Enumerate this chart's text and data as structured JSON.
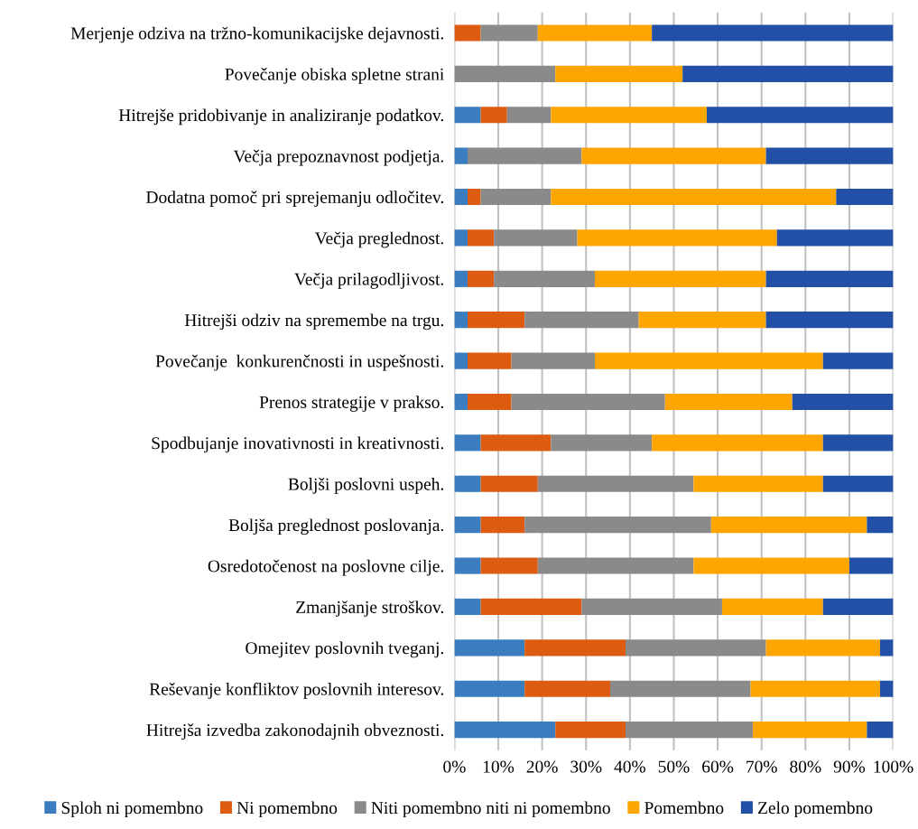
{
  "chart_data": {
    "type": "bar",
    "orientation": "horizontal",
    "stacked": true,
    "categories": [
      "Merjenje odziva na tržno-komunikacijske dejavnosti.",
      "Povečanje obiska spletne strani",
      "Hitrejše pridobivanje in analiziranje podatkov.",
      "Večja prepoznavnost podjetja.",
      "Dodatna pomoč pri sprejemanju odločitev.",
      "Večja preglednost.",
      "Večja prilagodljivost.",
      "Hitrejši odziv na spremembe na trgu.",
      "Povečanje  konkurenčnosti in uspešnosti.",
      "Prenos strategije v prakso.",
      "Spodbujanje inovativnosti in kreativnosti.",
      "Boljši poslovni uspeh.",
      "Boljša preglednost poslovanja.",
      "Osredotočenost na poslovne cilje.",
      "Zmanjšanje stroškov.",
      "Omejitev poslovnih tveganj.",
      "Reševanje konfliktov poslovnih interesov.",
      "Hitrejša izvedba zakonodajnih obveznosti."
    ],
    "series": [
      {
        "name": "Sploh ni pomembno",
        "color": "#3b7dbf",
        "values": [
          0,
          0,
          6,
          3,
          3,
          3,
          3,
          3,
          3,
          3,
          6,
          6,
          6,
          6,
          6,
          16,
          16,
          23
        ]
      },
      {
        "name": "Ni pomembno",
        "color": "#dd5c11",
        "values": [
          6,
          0,
          6,
          0,
          3,
          6,
          6,
          13,
          10,
          10,
          16,
          13,
          10,
          13,
          23,
          23,
          19.5,
          16
        ]
      },
      {
        "name": "Niti pomembno niti ni pomembno",
        "color": "#8a8a8a",
        "values": [
          13,
          23,
          10,
          26,
          16,
          19,
          23,
          26,
          19,
          35,
          23,
          35.5,
          42.5,
          35.5,
          32,
          32,
          32,
          29
        ]
      },
      {
        "name": "Pomembno",
        "color": "#ffa500",
        "values": [
          26,
          29,
          35.5,
          42,
          65,
          45.5,
          39,
          29,
          52,
          29,
          39,
          29.5,
          35.5,
          35.5,
          23,
          26,
          29.5,
          26
        ]
      },
      {
        "name": "Zelo pomembno",
        "color": "#2150a6",
        "values": [
          55,
          48,
          42.5,
          29,
          13,
          26.5,
          29,
          29,
          16,
          23,
          16,
          16,
          6,
          10,
          16,
          3,
          3,
          6
        ]
      }
    ],
    "xlim": [
      0,
      100
    ],
    "xticks": [
      {
        "value": 0,
        "label": "0%"
      },
      {
        "value": 10,
        "label": "10%"
      },
      {
        "value": 20,
        "label": "20%"
      },
      {
        "value": 30,
        "label": "30%"
      },
      {
        "value": 40,
        "label": "40%"
      },
      {
        "value": 50,
        "label": "50%"
      },
      {
        "value": 60,
        "label": "60%"
      },
      {
        "value": 70,
        "label": "70%"
      },
      {
        "value": 80,
        "label": "80%"
      },
      {
        "value": 90,
        "label": "90%"
      },
      {
        "value": 100,
        "label": "100%"
      }
    ],
    "grid": "x",
    "legend": "bottom"
  }
}
